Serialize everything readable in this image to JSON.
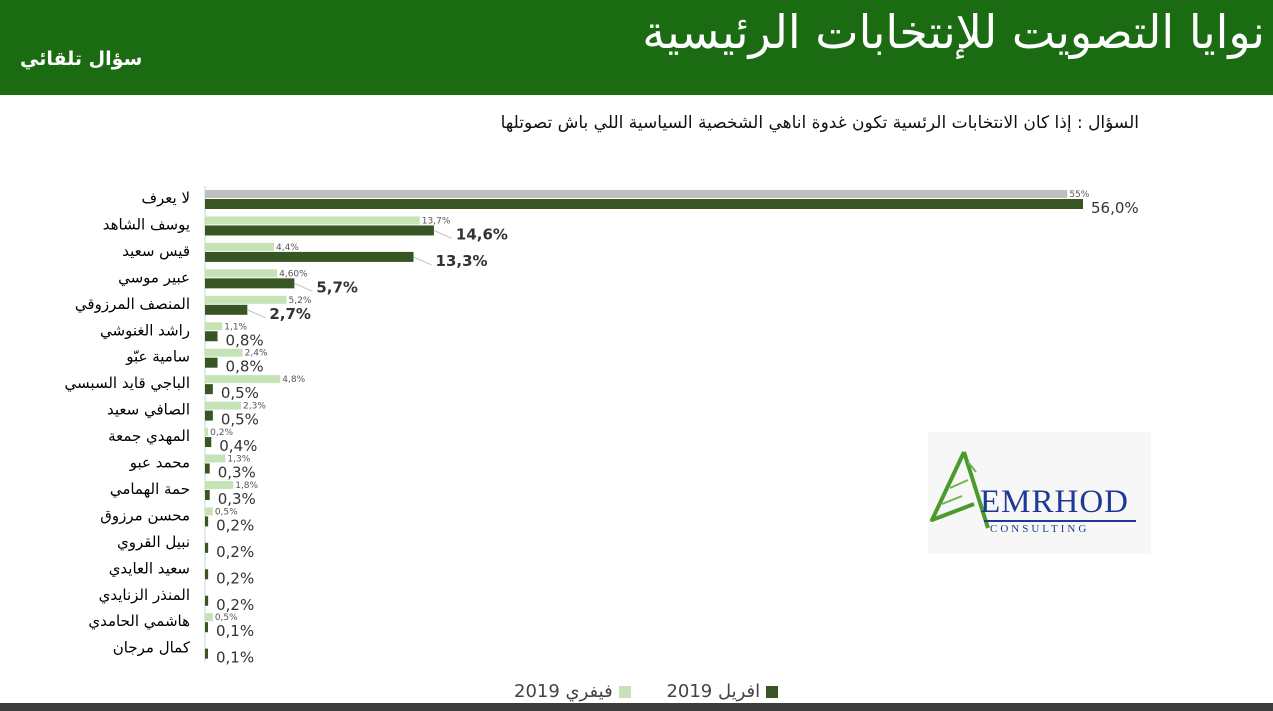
{
  "header": {
    "title": "نوايا التصويت للإنتخابات الرئيسية",
    "tag": "سؤال تلقائي"
  },
  "question": "السؤال : إذا كان الانتخابات الرئسية تكون غدوة اناهي الشخصية السياسية اللي باش تصوتلها",
  "logo": {
    "name": "EMRHOD",
    "sub": "CONSULTING"
  },
  "legend": {
    "feb": "فيفري 2019",
    "apr": "افريل 2019"
  },
  "colors": {
    "header": "#1a6b12",
    "feb": "#c5e3b6",
    "apr": "#375623",
    "first_row_feb": "#bfbfbf",
    "logo_text": "#1e3a96",
    "logo_green": "#4a9a2e"
  },
  "chart_data": {
    "type": "bar",
    "orientation": "horizontal",
    "categories": [
      "لا يعرف",
      "يوسف الشاهد",
      "قيس سعيد",
      "عبير موسي",
      "المنصف المرزوقي",
      "راشد الغنوشي",
      "سامية عبّو",
      "الباجي قايد السبسي",
      "الصافي سعيد",
      "المهدي جمعة",
      "محمد عبو",
      "حمة الهمامي",
      "محسن مرزوق",
      "نبيل القروي",
      "سعيد العايدي",
      "المنذر الزنايدي",
      "هاشمي الحامدي",
      "كمال مرجان"
    ],
    "series": [
      {
        "name": "فيفري 2019",
        "values": [
          55,
          13.7,
          4.4,
          4.6,
          5.2,
          1.1,
          2.4,
          4.8,
          2.3,
          0.2,
          1.3,
          1.8,
          0.5,
          null,
          null,
          null,
          0.5,
          null
        ],
        "labels": [
          "55%",
          "13,7%",
          "4,4%",
          "4,60%",
          "5,2%",
          "1,1%",
          "2,4%",
          "4,8%",
          "2,3%",
          "0,2%",
          "1,3%",
          "1,8%",
          "0,5%",
          "",
          "",
          "",
          "0,5%",
          ""
        ]
      },
      {
        "name": "افريل 2019",
        "values": [
          56.0,
          14.6,
          13.3,
          5.7,
          2.7,
          0.8,
          0.8,
          0.5,
          0.5,
          0.4,
          0.3,
          0.3,
          0.2,
          0.2,
          0.2,
          0.2,
          0.1,
          0.1
        ],
        "labels": [
          "56,0%",
          "14,6%",
          "13,3%",
          "5,7%",
          "2,7%",
          "0,8%",
          "0,8%",
          "0,5%",
          "0,5%",
          "0,4%",
          "0,3%",
          "0,3%",
          "0,2%",
          "0,2%",
          "0,2%",
          "0,2%",
          "0,1%",
          "0,1%"
        ],
        "bold": [
          false,
          true,
          true,
          true,
          true,
          false,
          false,
          false,
          false,
          false,
          false,
          false,
          false,
          false,
          false,
          false,
          false,
          false
        ]
      }
    ],
    "xlim": [
      0,
      56
    ],
    "grid": false,
    "legend_position": "bottom"
  }
}
